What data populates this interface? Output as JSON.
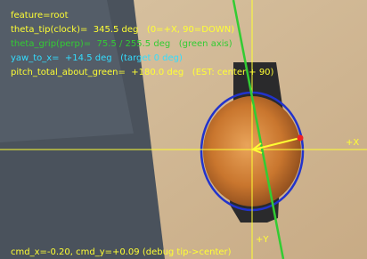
{
  "overlay": {
    "lines": [
      {
        "text": "feature=root",
        "color": "#ffff33"
      },
      {
        "text": "theta_tip(clock)=  345.5 deg   (0=+X, 90=DOWN)",
        "color": "#ffff33"
      },
      {
        "text": "theta_grip(perp)=  75.5 / 255.5 deg   (green axis)",
        "color": "#33cc33"
      },
      {
        "text": "yaw_to_x=  +14.5 deg   (target 0 deg)",
        "color": "#33ddff"
      },
      {
        "text": "pitch_total_about_green=  +180.0 deg   (EST: center + 90)",
        "color": "#ffff33"
      }
    ],
    "x_axis_label": "+X",
    "y_axis_label": "+Y",
    "footer": "cmd_x=-0.20, cmd_y=+0.09   (debug tip->center)"
  }
}
